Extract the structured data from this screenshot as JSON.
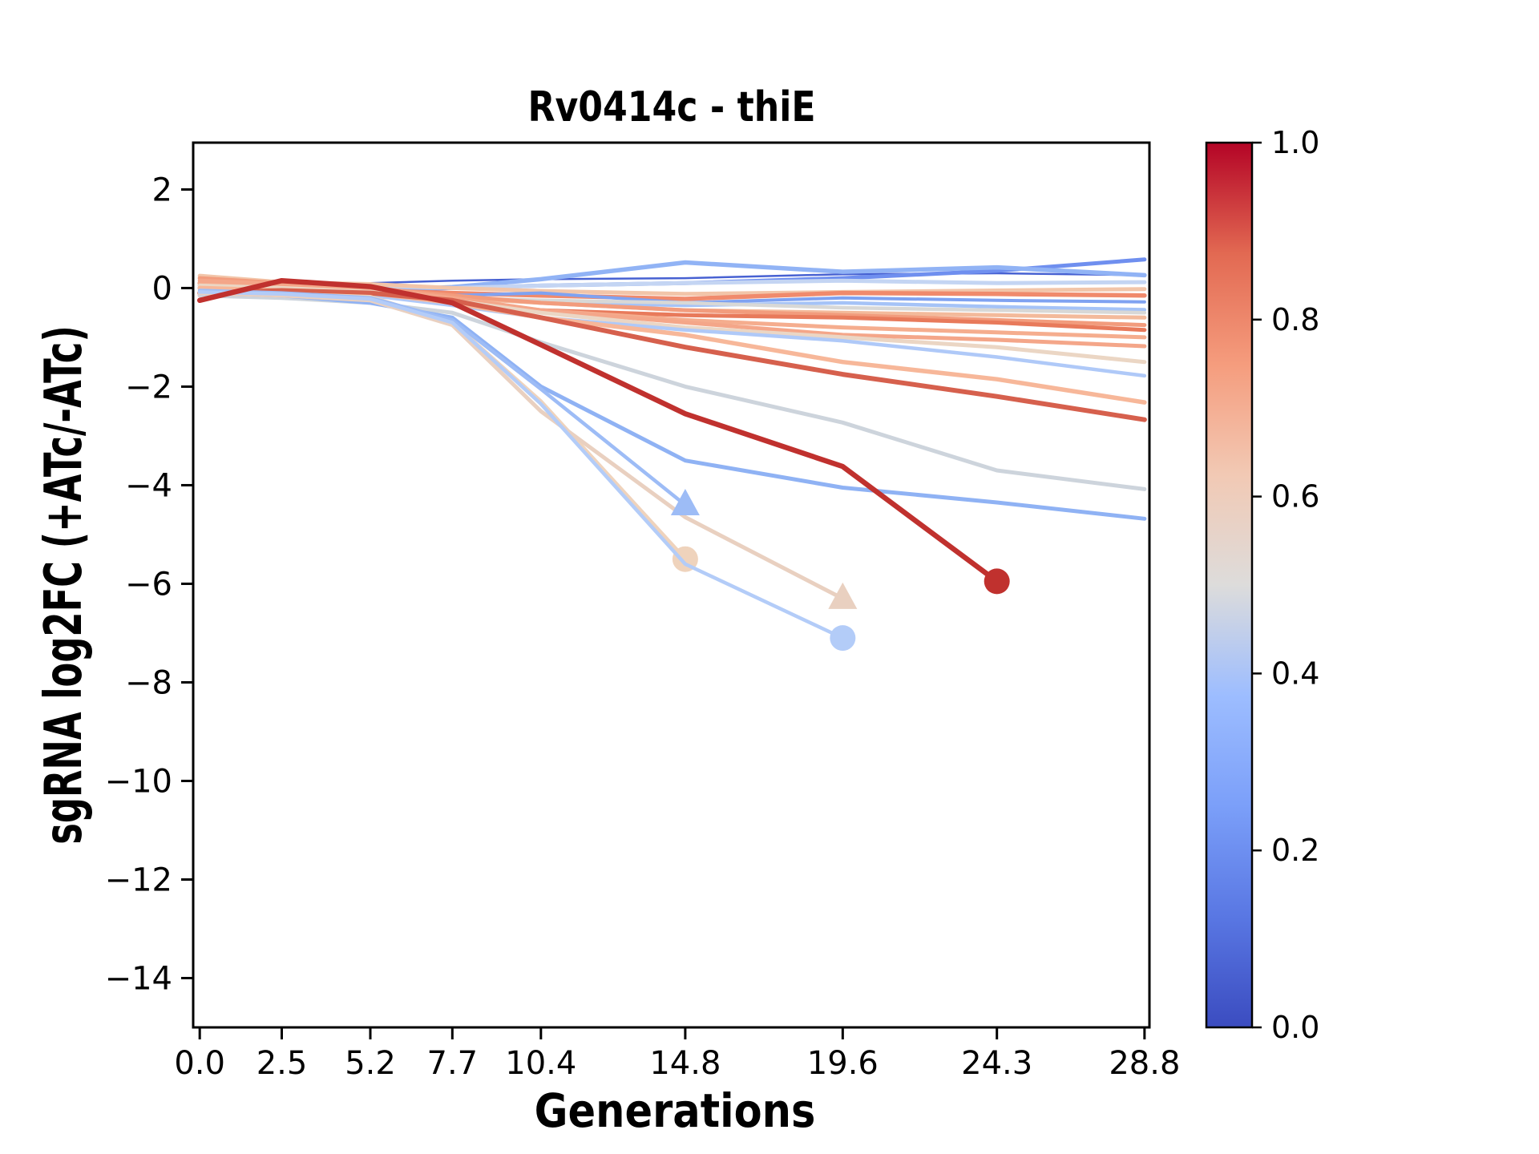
{
  "window": {
    "background": "#ffffff",
    "frame_color": "#000000"
  },
  "chart_data": {
    "type": "line",
    "title": "Rv0414c - thiE",
    "xlabel": "Generations",
    "ylabel": "sgRNA log2FC (+ATc/-ATc)",
    "grid": false,
    "legend": "none",
    "xlim": [
      -0.2,
      28.95
    ],
    "ylim": [
      -15.0,
      2.95
    ],
    "x_ticks": {
      "values": [
        0,
        2.5,
        5.2,
        7.7,
        10.4,
        14.8,
        19.6,
        24.3,
        28.8
      ],
      "labels": [
        "0.0",
        "2.5",
        "5.2",
        "7.7",
        "10.4",
        "14.8",
        "19.6",
        "24.3",
        "28.8"
      ]
    },
    "y_ticks": {
      "values": [
        2,
        0,
        -2,
        -4,
        -6,
        -8,
        -10,
        -12,
        -14
      ],
      "labels": [
        "2",
        "0",
        "−2",
        "−4",
        "−6",
        "−8",
        "−10",
        "−12",
        "−14"
      ]
    },
    "x": [
      0,
      2.5,
      5.2,
      7.7,
      10.4,
      14.8,
      19.6,
      24.3,
      28.8
    ],
    "series": [
      {
        "name": "line-01",
        "colormap_value": 0.15,
        "color": "#4761D2",
        "width": 2.5,
        "marker": null,
        "y": [
          0.1,
          0.05,
          0.1,
          0.15,
          0.18,
          0.2,
          0.28,
          0.3,
          0.26
        ]
      },
      {
        "name": "line-02",
        "colormap_value": 0.22,
        "color": "#6F8FEF",
        "width": 5,
        "marker": null,
        "y": [
          0.05,
          0.0,
          -0.05,
          0.0,
          0.05,
          0.1,
          0.2,
          0.35,
          0.58
        ]
      },
      {
        "name": "line-03",
        "colormap_value": 0.3,
        "color": "#91B3F5",
        "width": 5.5,
        "marker": null,
        "y": [
          0.0,
          -0.08,
          -0.05,
          0.02,
          0.18,
          0.52,
          0.33,
          0.42,
          0.26
        ]
      },
      {
        "name": "line-04",
        "colormap_value": 0.44,
        "color": "#C4D5F3",
        "width": 5,
        "marker": null,
        "y": [
          0.2,
          0.1,
          0.05,
          0.0,
          0.05,
          0.1,
          0.15,
          0.1,
          0.12
        ]
      },
      {
        "name": "line-05",
        "colormap_value": 0.63,
        "color": "#F2C5A9",
        "width": 5,
        "marker": null,
        "y": [
          0.25,
          0.12,
          0.08,
          0.0,
          -0.06,
          -0.12,
          -0.08,
          -0.05,
          -0.02
        ]
      },
      {
        "name": "line-06",
        "colormap_value": 0.77,
        "color": "#F08A6C",
        "width": 5.5,
        "marker": null,
        "y": [
          0.1,
          0.0,
          -0.05,
          -0.1,
          -0.15,
          -0.22,
          -0.1,
          -0.12,
          -0.15
        ]
      },
      {
        "name": "line-07",
        "colormap_value": 0.32,
        "color": "#7FA2F1",
        "width": 4,
        "marker": null,
        "y": [
          -0.05,
          -0.1,
          -0.12,
          -0.15,
          -0.1,
          -0.3,
          -0.2,
          -0.25,
          -0.28
        ]
      },
      {
        "name": "line-08",
        "colormap_value": 0.38,
        "color": "#A5C3F7",
        "width": 4.5,
        "marker": null,
        "y": [
          0.0,
          -0.05,
          -0.1,
          -0.2,
          -0.3,
          -0.35,
          -0.3,
          -0.38,
          -0.44
        ]
      },
      {
        "name": "line-09",
        "colormap_value": 0.5,
        "color": "#D8D8D6",
        "width": 4.5,
        "marker": null,
        "y": [
          -0.1,
          -0.15,
          -0.1,
          -0.2,
          -0.25,
          -0.3,
          -0.4,
          -0.45,
          -0.5
        ]
      },
      {
        "name": "line-10",
        "colormap_value": 0.66,
        "color": "#F3BA9B",
        "width": 5,
        "marker": null,
        "y": [
          0.05,
          0.0,
          -0.08,
          -0.2,
          -0.3,
          -0.45,
          -0.5,
          -0.55,
          -0.6
        ]
      },
      {
        "name": "line-11",
        "colormap_value": 0.74,
        "color": "#F29C7D",
        "width": 5,
        "marker": null,
        "y": [
          0.2,
          0.1,
          0.0,
          -0.15,
          -0.3,
          -0.45,
          -0.55,
          -0.65,
          -0.75
        ]
      },
      {
        "name": "line-12",
        "colormap_value": 0.8,
        "color": "#E87A5B",
        "width": 5,
        "marker": null,
        "y": [
          -0.15,
          -0.1,
          -0.15,
          -0.3,
          -0.45,
          -0.55,
          -0.6,
          -0.7,
          -0.85
        ]
      },
      {
        "name": "line-13",
        "colormap_value": 0.7,
        "color": "#F5AD8E",
        "width": 5,
        "marker": null,
        "y": [
          0.1,
          0.05,
          -0.05,
          -0.25,
          -0.45,
          -0.65,
          -0.8,
          -0.9,
          -1.0
        ]
      },
      {
        "name": "line-14",
        "colormap_value": 0.72,
        "color": "#F4A689",
        "width": 5,
        "marker": null,
        "y": [
          0.15,
          0.08,
          0.0,
          -0.2,
          -0.45,
          -0.7,
          -0.95,
          -1.05,
          -1.18
        ]
      },
      {
        "name": "line-15",
        "colormap_value": 0.57,
        "color": "#EBD6C4",
        "width": 5,
        "marker": null,
        "y": [
          0.05,
          0.0,
          -0.08,
          -0.25,
          -0.5,
          -0.8,
          -1.0,
          -1.2,
          -1.5
        ]
      },
      {
        "name": "line-16",
        "colormap_value": 0.4,
        "color": "#AFC9F8",
        "width": 4.5,
        "marker": null,
        "y": [
          -0.05,
          -0.1,
          -0.15,
          -0.35,
          -0.6,
          -0.85,
          -1.07,
          -1.4,
          -1.78
        ]
      },
      {
        "name": "line-17",
        "colormap_value": 0.67,
        "color": "#F7B799",
        "width": 5.5,
        "marker": null,
        "y": [
          0.0,
          -0.05,
          -0.1,
          -0.3,
          -0.6,
          -0.95,
          -1.5,
          -1.85,
          -2.32
        ]
      },
      {
        "name": "line-18",
        "colormap_value": 0.87,
        "color": "#D6604D",
        "width": 6,
        "marker": null,
        "y": [
          -0.1,
          -0.05,
          -0.1,
          -0.25,
          -0.6,
          -1.2,
          -1.75,
          -2.2,
          -2.67
        ]
      },
      {
        "name": "line-19",
        "colormap_value": 0.47,
        "color": "#CDD4DC",
        "width": 5,
        "marker": null,
        "y": [
          -0.15,
          -0.2,
          -0.3,
          -0.5,
          -1.1,
          -2.0,
          -2.73,
          -3.7,
          -4.08
        ]
      },
      {
        "name": "line-20",
        "colormap_value": 0.33,
        "color": "#8FB2F4",
        "width": 5,
        "marker": null,
        "y": [
          -0.1,
          -0.15,
          -0.3,
          -0.6,
          -2.0,
          -3.5,
          -4.05,
          -4.35,
          -4.68
        ]
      },
      {
        "name": "line-21",
        "colormap_value": 0.6,
        "color": "#EFD3BC",
        "width": 5,
        "marker": "circle",
        "y": [
          -0.05,
          -0.12,
          -0.18,
          -0.7,
          -2.3,
          -5.5
        ]
      },
      {
        "name": "line-22",
        "colormap_value": 0.58,
        "color": "#E9D0C0",
        "width": 5,
        "marker": "triangle",
        "y": [
          -0.1,
          -0.15,
          -0.25,
          -0.75,
          -2.5,
          -4.65,
          -6.3
        ]
      },
      {
        "name": "line-23",
        "colormap_value": 0.36,
        "color": "#9DBCF6",
        "width": 4.5,
        "marker": "triangle",
        "y": [
          -0.05,
          -0.1,
          -0.2,
          -0.65,
          -2.05,
          -4.4
        ]
      },
      {
        "name": "line-24",
        "colormap_value": 0.41,
        "color": "#B3CCF8",
        "width": 4.5,
        "marker": "circle",
        "y": [
          -0.08,
          -0.12,
          -0.22,
          -0.7,
          -2.35,
          -5.6,
          -7.1
        ]
      },
      {
        "name": "line-25",
        "colormap_value": 0.96,
        "color": "#C0312E",
        "width": 6.5,
        "marker": "circle",
        "y": [
          -0.25,
          0.15,
          0.03,
          -0.3,
          -1.15,
          -2.55,
          -3.62,
          -5.95
        ]
      }
    ],
    "colorbar": {
      "colormap": "coolwarm",
      "orientation": "vertical",
      "ticks": {
        "values": [
          0.0,
          0.2,
          0.4,
          0.6,
          0.8,
          1.0
        ],
        "labels": [
          "0.0",
          "0.2",
          "0.4",
          "0.6",
          "0.8",
          "1.0"
        ]
      },
      "gradient_stops": [
        [
          0.0,
          "#3B4CC0"
        ],
        [
          0.125,
          "#5977E3"
        ],
        [
          0.25,
          "#7B9FF9"
        ],
        [
          0.375,
          "#9DBDFF"
        ],
        [
          0.5,
          "#DDDCDB"
        ],
        [
          0.625,
          "#F2C9B4"
        ],
        [
          0.75,
          "#F59C7D"
        ],
        [
          0.875,
          "#E26952"
        ],
        [
          1.0,
          "#B40426"
        ]
      ]
    }
  }
}
